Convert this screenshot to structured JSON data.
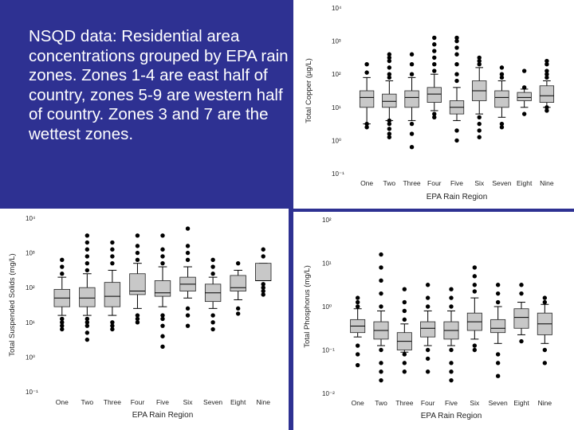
{
  "caption": "NSQD data: Residential area concentrations grouped by EPA rain zones. Zones 1-4 are east half of country, zones 5-9 are western half of country. Zones 3 and 7 are the wettest zones.",
  "colors": {
    "background": "#2e3192",
    "panel": "#ffffff",
    "box_fill": "#c8c8c8",
    "outlier": "#000000"
  },
  "chart_data": [
    {
      "id": "copper",
      "type": "boxplot",
      "xlabel": "EPA Rain Region",
      "ylabel": "Total Copper (µg/L)",
      "yscale": "log",
      "ylim_log10": [
        -1,
        4
      ],
      "ytick_labels": [
        "10⁻¹",
        "10⁰",
        "10¹",
        "10²",
        "10³",
        "10⁴"
      ],
      "categories": [
        "One",
        "Two",
        "Three",
        "Four",
        "Five",
        "Six",
        "Seven",
        "Eight",
        "Nine"
      ],
      "boxes_log10": [
        {
          "whisker_low": 0.5,
          "q1": 1.0,
          "median": 1.3,
          "q3": 1.5,
          "whisker_high": 1.9,
          "outliers": [
            0.4,
            0.5,
            2.05,
            2.3
          ]
        },
        {
          "whisker_low": 0.6,
          "q1": 1.0,
          "median": 1.18,
          "q3": 1.4,
          "whisker_high": 1.8,
          "outliers": [
            0.1,
            0.2,
            0.35,
            0.5,
            0.6,
            1.9,
            2.0,
            2.2,
            2.4,
            2.5,
            2.6
          ]
        },
        {
          "whisker_low": 0.6,
          "q1": 1.0,
          "median": 1.3,
          "q3": 1.5,
          "whisker_high": 1.9,
          "outliers": [
            -0.2,
            0.2,
            0.5,
            2.0,
            2.3,
            2.6
          ]
        },
        {
          "whisker_low": 0.9,
          "q1": 1.15,
          "median": 1.4,
          "q3": 1.6,
          "whisker_high": 2.0,
          "outliers": [
            0.7,
            0.8,
            2.1,
            2.3,
            2.5,
            2.7,
            2.9,
            3.1
          ]
        },
        {
          "whisker_low": 0.6,
          "q1": 0.8,
          "median": 1.0,
          "q3": 1.2,
          "whisker_high": 1.6,
          "outliers": [
            0.0,
            0.3,
            1.8,
            2.0,
            2.3,
            2.6,
            2.8,
            3.0,
            3.1
          ]
        },
        {
          "whisker_low": 0.8,
          "q1": 1.2,
          "median": 1.5,
          "q3": 1.8,
          "whisker_high": 2.2,
          "outliers": [
            0.1,
            0.3,
            0.5,
            0.7,
            2.3,
            2.4,
            2.5
          ]
        },
        {
          "whisker_low": 0.7,
          "q1": 1.0,
          "median": 1.3,
          "q3": 1.5,
          "whisker_high": 1.8,
          "outliers": [
            0.4,
            0.5,
            1.9,
            2.0,
            2.2
          ]
        },
        {
          "whisker_low": 1.0,
          "q1": 1.2,
          "median": 1.3,
          "q3": 1.45,
          "whisker_high": 1.55,
          "outliers": [
            0.8,
            1.6,
            2.1
          ]
        },
        {
          "whisker_low": 1.0,
          "q1": 1.15,
          "median": 1.35,
          "q3": 1.65,
          "whisker_high": 1.8,
          "outliers": [
            0.9,
            1.0,
            1.9,
            2.0,
            2.1,
            2.3,
            2.4
          ]
        }
      ]
    },
    {
      "id": "tss",
      "type": "boxplot",
      "xlabel": "EPA Rain Region",
      "ylabel": "Total Suspended Solids (mg/L)",
      "yscale": "log",
      "ylim_log10": [
        -1,
        4
      ],
      "ytick_labels": [
        "10⁻¹",
        "10⁰",
        "10¹",
        "10²",
        "10³",
        "10⁴"
      ],
      "categories": [
        "One",
        "Two",
        "Three",
        "Four",
        "Five",
        "Six",
        "Seven",
        "Eight",
        "Nine"
      ],
      "boxes_log10": [
        {
          "whisker_low": 1.2,
          "q1": 1.45,
          "median": 1.7,
          "q3": 1.95,
          "whisker_high": 2.3,
          "outliers": [
            0.8,
            0.9,
            1.0,
            1.1,
            2.4,
            2.6,
            2.8
          ]
        },
        {
          "whisker_low": 1.2,
          "q1": 1.45,
          "median": 1.7,
          "q3": 2.0,
          "whisker_high": 2.4,
          "outliers": [
            0.5,
            0.7,
            0.9,
            1.0,
            1.1,
            2.5,
            2.7,
            2.9,
            3.1,
            3.3,
            3.5
          ]
        },
        {
          "whisker_low": 1.2,
          "q1": 1.45,
          "median": 1.75,
          "q3": 2.15,
          "whisker_high": 2.5,
          "outliers": [
            0.8,
            0.9,
            1.0,
            2.7,
            2.9,
            3.1,
            3.3
          ]
        },
        {
          "whisker_low": 1.4,
          "q1": 1.8,
          "median": 1.9,
          "q3": 2.4,
          "whisker_high": 2.7,
          "outliers": [
            1.0,
            1.1,
            1.2,
            2.8,
            3.0,
            3.2,
            3.5
          ]
        },
        {
          "whisker_low": 1.45,
          "q1": 1.75,
          "median": 1.85,
          "q3": 2.2,
          "whisker_high": 2.6,
          "outliers": [
            0.3,
            0.6,
            0.9,
            1.1,
            1.2,
            2.7,
            2.9,
            3.1,
            3.5
          ]
        },
        {
          "whisker_low": 1.7,
          "q1": 1.9,
          "median": 2.1,
          "q3": 2.3,
          "whisker_high": 2.6,
          "outliers": [
            0.9,
            1.2,
            1.4,
            2.8,
            3.0,
            3.2,
            3.7
          ]
        },
        {
          "whisker_low": 1.4,
          "q1": 1.6,
          "median": 1.85,
          "q3": 2.1,
          "whisker_high": 2.3,
          "outliers": [
            0.8,
            1.0,
            1.2,
            2.4,
            2.6,
            2.8
          ]
        },
        {
          "whisker_low": 1.65,
          "q1": 1.9,
          "median": 2.0,
          "q3": 2.35,
          "whisker_high": 2.5,
          "outliers": [
            1.25,
            1.4,
            2.7
          ]
        },
        {
          "whisker_low": 2.2,
          "q1": 2.2,
          "median": 2.2,
          "q3": 2.7,
          "whisker_high": 2.7,
          "outliers": [
            1.8,
            1.9,
            2.0,
            2.1,
            2.9,
            3.1
          ]
        }
      ]
    },
    {
      "id": "phosphorus",
      "type": "boxplot",
      "xlabel": "EPA Rain Region",
      "ylabel": "Total Phosphorus (mg/L)",
      "yscale": "log",
      "ylim_log10": [
        -2,
        2
      ],
      "ytick_labels": [
        "10⁻²",
        "10⁻¹",
        "10⁰",
        "10¹",
        "10²"
      ],
      "categories": [
        "One",
        "Two",
        "Three",
        "Four",
        "Five",
        "Six",
        "Seven",
        "Eight",
        "Nine"
      ],
      "boxes_log10": [
        {
          "whisker_low": -0.7,
          "q1": -0.6,
          "median": -0.45,
          "q3": -0.3,
          "whisker_high": -0.05,
          "outliers": [
            -1.35,
            -1.1,
            -0.9,
            0.0,
            0.1,
            0.2
          ]
        },
        {
          "whisker_low": -0.9,
          "q1": -0.75,
          "median": -0.55,
          "q3": -0.35,
          "whisker_high": -0.1,
          "outliers": [
            -1.7,
            -1.5,
            -1.3,
            -1.0,
            0.0,
            0.3,
            0.6,
            0.9,
            1.2
          ]
        },
        {
          "whisker_low": -1.05,
          "q1": -1.0,
          "median": -0.8,
          "q3": -0.6,
          "whisker_high": -0.4,
          "outliers": [
            -1.5,
            -1.3,
            -1.1,
            -0.3,
            -0.1,
            0.1,
            0.4
          ]
        },
        {
          "whisker_low": -0.9,
          "q1": -0.7,
          "median": -0.5,
          "q3": -0.35,
          "whisker_high": -0.1,
          "outliers": [
            -1.5,
            -1.2,
            -1.0,
            0.0,
            0.2,
            0.5
          ]
        },
        {
          "whisker_low": -0.9,
          "q1": -0.75,
          "median": -0.55,
          "q3": -0.35,
          "whisker_high": -0.1,
          "outliers": [
            -1.7,
            -1.5,
            -1.3,
            -1.0,
            0.0,
            0.2,
            0.4
          ]
        },
        {
          "whisker_low": -0.75,
          "q1": -0.55,
          "median": -0.35,
          "q3": -0.15,
          "whisker_high": 0.2,
          "outliers": [
            -1.0,
            -0.9,
            0.35,
            0.5,
            0.7,
            0.9
          ]
        },
        {
          "whisker_low": -0.85,
          "q1": -0.6,
          "median": -0.5,
          "q3": -0.3,
          "whisker_high": 0.0,
          "outliers": [
            -1.6,
            -1.3,
            -1.1,
            0.1,
            0.3,
            0.5
          ]
        },
        {
          "whisker_low": -0.65,
          "q1": -0.5,
          "median": -0.25,
          "q3": -0.05,
          "whisker_high": 0.1,
          "outliers": [
            -0.8,
            0.3,
            0.5
          ]
        },
        {
          "whisker_low": -0.85,
          "q1": -0.65,
          "median": -0.4,
          "q3": -0.15,
          "whisker_high": 0.05,
          "outliers": [
            -1.3,
            -1.0,
            0.1,
            0.2
          ]
        }
      ]
    }
  ]
}
